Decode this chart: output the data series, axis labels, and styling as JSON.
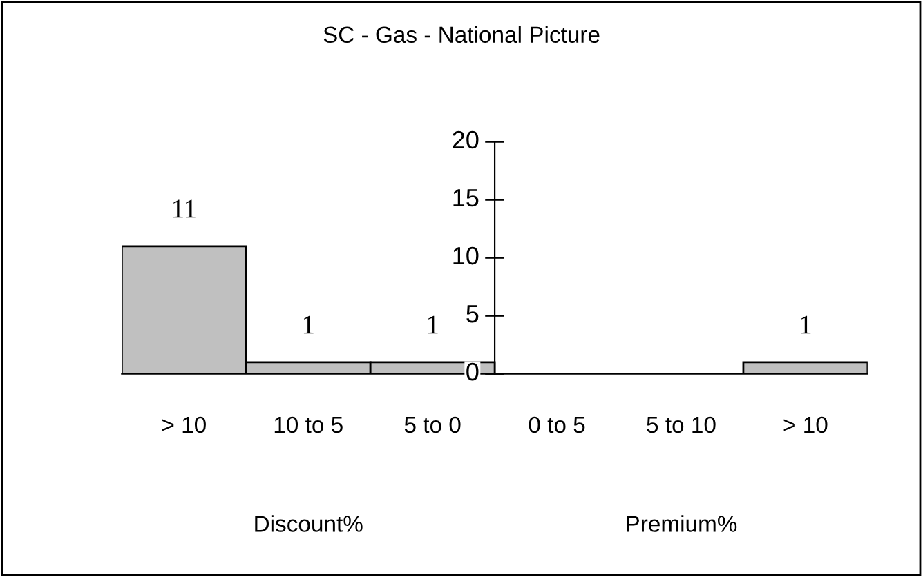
{
  "chart_data": {
    "type": "bar",
    "title": "SC - Gas - National Picture",
    "categories": [
      "> 10",
      "10 to 5",
      "5 to 0",
      "0 to 5",
      "5 to 10",
      "> 10"
    ],
    "values": [
      11,
      1,
      1,
      0,
      0,
      1
    ],
    "value_labels": [
      "11",
      "1",
      "1",
      null,
      null,
      "1"
    ],
    "color": "#c0c0c0",
    "ylim": [
      0,
      20
    ],
    "yticks": [
      0,
      5,
      10,
      15,
      20
    ],
    "grid": false,
    "legend": false,
    "annotations": [
      "Discount%",
      "Premium%"
    ]
  }
}
